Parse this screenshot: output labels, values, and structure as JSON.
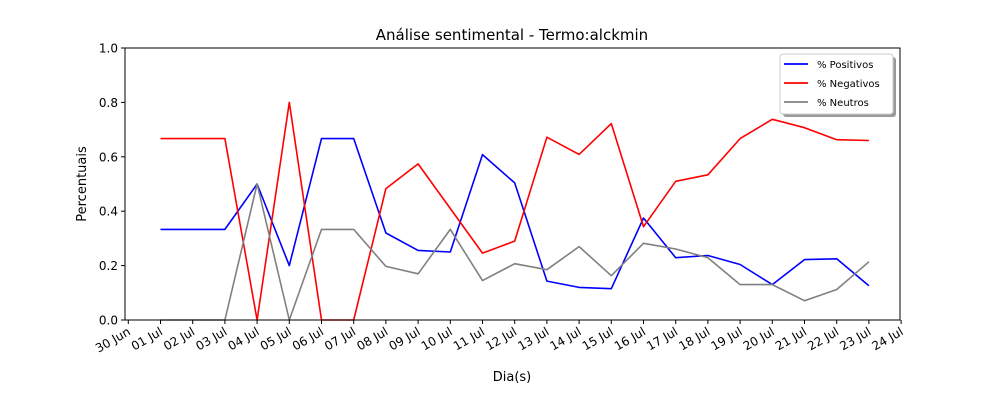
{
  "chart_data": {
    "type": "line",
    "title": "Análise sentimental - Termo:alckmin",
    "xlabel": "Dia(s)",
    "ylabel": "Percentuais",
    "ylim": [
      0,
      1.0
    ],
    "yticks": [
      "0.0",
      "0.2",
      "0.4",
      "0.6",
      "0.8",
      "1.0"
    ],
    "xticks": [
      "30 Jun",
      "01 Jul",
      "02 Jul",
      "03 Jul",
      "04 Jul",
      "05 Jul",
      "06 Jul",
      "07 Jul",
      "08 Jul",
      "09 Jul",
      "10 Jul",
      "11 Jul",
      "12 Jul",
      "13 Jul",
      "14 Jul",
      "15 Jul",
      "16 Jul",
      "17 Jul",
      "18 Jul",
      "19 Jul",
      "20 Jul",
      "21 Jul",
      "22 Jul",
      "23 Jul",
      "24 Jul"
    ],
    "x": [
      "01 Jul",
      "02 Jul",
      "03 Jul",
      "04 Jul",
      "05 Jul",
      "06 Jul",
      "07 Jul",
      "08 Jul",
      "09 Jul",
      "10 Jul",
      "11 Jul",
      "12 Jul",
      "13 Jul",
      "14 Jul",
      "15 Jul",
      "16 Jul",
      "17 Jul",
      "18 Jul",
      "19 Jul",
      "20 Jul",
      "21 Jul",
      "22 Jul",
      "23 Jul"
    ],
    "grid": false,
    "legend_position": "top-right",
    "series": [
      {
        "name": "% Positivos",
        "color": "#0000ff",
        "values": [
          0.333,
          0.333,
          0.333,
          0.5,
          0.2,
          0.667,
          0.667,
          0.32,
          0.256,
          0.25,
          0.608,
          0.504,
          0.143,
          0.12,
          0.115,
          0.375,
          0.229,
          0.237,
          0.204,
          0.13,
          0.222,
          0.225,
          0.126
        ]
      },
      {
        "name": "% Negativos",
        "color": "#ff0000",
        "values": [
          0.667,
          0.667,
          0.667,
          0.0,
          0.8,
          0.0,
          0.0,
          0.483,
          0.574,
          0.41,
          0.246,
          0.29,
          0.672,
          0.609,
          0.722,
          0.343,
          0.51,
          0.534,
          0.667,
          0.738,
          0.707,
          0.663,
          0.66
        ]
      },
      {
        "name": "% Neutros",
        "color": "#808080",
        "values": [
          0.0,
          0.0,
          0.0,
          0.5,
          0.0,
          0.333,
          0.333,
          0.197,
          0.17,
          0.333,
          0.145,
          0.207,
          0.185,
          0.27,
          0.163,
          0.282,
          0.261,
          0.229,
          0.13,
          0.13,
          0.071,
          0.112,
          0.214
        ]
      }
    ]
  }
}
